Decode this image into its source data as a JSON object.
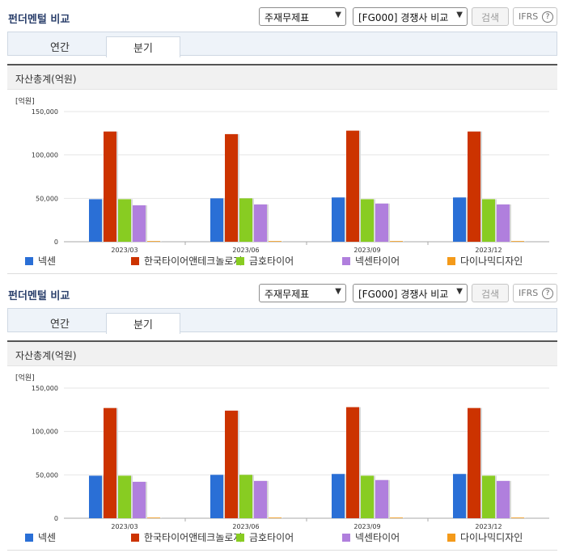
{
  "header": {
    "title": "펀더멘털 비교",
    "statement_select": "주재무제표",
    "compare_select": "[FG000] 경쟁사 비교",
    "search_label": "검색",
    "ifrs_label": "IFRS",
    "help_glyph": "?"
  },
  "tabs": [
    {
      "label": "연간",
      "active": false
    },
    {
      "label": "분기",
      "active": true
    }
  ],
  "chart_heading": "자산총계(억원)",
  "colors": {
    "넥센": "#2a6fd6",
    "한국타이어앤테크놀로지": "#cc3300",
    "금호타이어": "#88cc22",
    "넥센타이어": "#b07fdd",
    "다이나믹디자인": "#f49a1a"
  },
  "chart_data": {
    "type": "bar",
    "title": "자산총계(억원)",
    "unit_label": "[억원]",
    "categories": [
      "2023/03",
      "2023/06",
      "2023/09",
      "2023/12"
    ],
    "ylim": [
      0,
      150000
    ],
    "yticks": [
      0,
      50000,
      100000,
      150000
    ],
    "ytick_labels": [
      "0",
      "50,000",
      "100,000",
      "150,000"
    ],
    "grid": true,
    "legend_position": "bottom",
    "series": [
      {
        "name": "넥센",
        "color": "#2a6fd6",
        "values": [
          49000,
          50000,
          51000,
          51000
        ]
      },
      {
        "name": "한국타이어앤테크놀로지",
        "color": "#cc3300",
        "values": [
          127000,
          124000,
          128000,
          127000
        ]
      },
      {
        "name": "금호타이어",
        "color": "#88cc22",
        "values": [
          49000,
          50000,
          49000,
          49000
        ]
      },
      {
        "name": "넥센타이어",
        "color": "#b07fdd",
        "values": [
          42000,
          43000,
          44000,
          43000
        ]
      },
      {
        "name": "다이나믹디자인",
        "color": "#f49a1a",
        "values": [
          300,
          300,
          300,
          300
        ]
      }
    ]
  }
}
